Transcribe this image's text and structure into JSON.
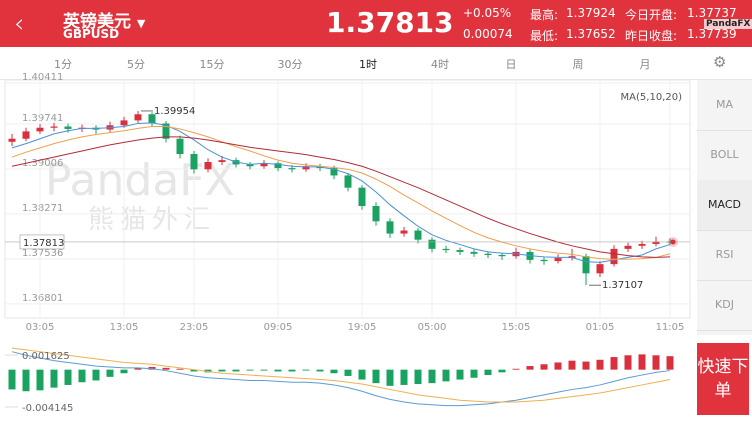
{
  "header": {
    "name": "英镑美元",
    "code": "GBPUSD",
    "change_pct": "+0.05%",
    "change": 0.00074,
    "high_label": "最高:",
    "high": 1.37924,
    "low_label": "最低:",
    "low": 1.37652,
    "open_label": "今日开盘:",
    "open": 1.37737,
    "prev_label": "昨日收盘:",
    "prev": 1.37739
  },
  "tabs": {
    "items": [
      "1分",
      "5分",
      "15分",
      "30分",
      "1时",
      "4时",
      "日",
      "周",
      "月"
    ],
    "selected": 4
  },
  "indicators": {
    "items": [
      "MA",
      "BOLL",
      "MACD",
      "RSI",
      "KDJ"
    ],
    "selected": 2
  },
  "button": "快速下单",
  "watermark": {
    "brand": "PandaFX",
    "chinese": "熊猫外汇"
  },
  "chart_data": [
    {
      "type": "candlestick",
      "indicator_label": "MA(5,10,20)",
      "last_price": 1.37813,
      "up_color": "#d9303d",
      "down_color": "#1aa260",
      "grid": true,
      "ylim": [
        1.3657,
        1.4046
      ],
      "yticks": [
        1.40411,
        1.39741,
        1.39006,
        1.38271,
        1.37536,
        1.36801
      ],
      "categories": [
        null,
        null,
        "03:05",
        null,
        null,
        null,
        null,
        null,
        "13:05",
        null,
        null,
        null,
        null,
        "23:05",
        null,
        null,
        null,
        null,
        null,
        "09:05",
        null,
        null,
        null,
        null,
        null,
        "19:05",
        null,
        null,
        null,
        null,
        "05:00",
        null,
        null,
        null,
        null,
        null,
        "15:05",
        null,
        null,
        null,
        null,
        null,
        "01:05",
        null,
        null,
        null,
        null,
        "11:05"
      ],
      "ohlc": [
        [
          1.3945,
          1.3958,
          1.3938,
          1.395
        ],
        [
          1.395,
          1.3968,
          1.3946,
          1.3962
        ],
        [
          1.3962,
          1.3974,
          1.3958,
          1.3968
        ],
        [
          1.3968,
          1.3976,
          1.3962,
          1.397
        ],
        [
          1.397,
          1.3975,
          1.396,
          1.3966
        ],
        [
          1.3966,
          1.3973,
          1.3961,
          1.3968
        ],
        [
          1.3968,
          1.3972,
          1.3958,
          1.3965
        ],
        [
          1.3965,
          1.3978,
          1.3961,
          1.3972
        ],
        [
          1.3972,
          1.3986,
          1.3968,
          1.398
        ],
        [
          1.398,
          1.39954,
          1.3976,
          1.399
        ],
        [
          1.399,
          1.3993,
          1.397,
          1.3975
        ],
        [
          1.3975,
          1.3979,
          1.3944,
          1.395
        ],
        [
          1.395,
          1.3955,
          1.3918,
          1.3925
        ],
        [
          1.3925,
          1.393,
          1.3893,
          1.39
        ],
        [
          1.39,
          1.3918,
          1.3895,
          1.3912
        ],
        [
          1.3912,
          1.3922,
          1.3907,
          1.3915
        ],
        [
          1.3915,
          1.3919,
          1.3903,
          1.3908
        ],
        [
          1.3908,
          1.3912,
          1.39,
          1.3905
        ],
        [
          1.3905,
          1.3915,
          1.3901,
          1.391
        ],
        [
          1.391,
          1.3913,
          1.3897,
          1.3902
        ],
        [
          1.3902,
          1.3907,
          1.3895,
          1.39
        ],
        [
          1.39,
          1.391,
          1.3896,
          1.3905
        ],
        [
          1.3905,
          1.3909,
          1.3897,
          1.3902
        ],
        [
          1.3902,
          1.3906,
          1.3884,
          1.389
        ],
        [
          1.389,
          1.3894,
          1.3864,
          1.387
        ],
        [
          1.387,
          1.3874,
          1.3834,
          1.384
        ],
        [
          1.384,
          1.3846,
          1.3808,
          1.3815
        ],
        [
          1.3815,
          1.382,
          1.3788,
          1.3795
        ],
        [
          1.3795,
          1.3806,
          1.379,
          1.38
        ],
        [
          1.38,
          1.3804,
          1.3779,
          1.3785
        ],
        [
          1.3785,
          1.3789,
          1.3764,
          1.377
        ],
        [
          1.377,
          1.3775,
          1.3763,
          1.3768
        ],
        [
          1.3768,
          1.3772,
          1.376,
          1.3765
        ],
        [
          1.3765,
          1.3769,
          1.3757,
          1.3762
        ],
        [
          1.3762,
          1.3766,
          1.3755,
          1.376
        ],
        [
          1.376,
          1.3764,
          1.3752,
          1.3758
        ],
        [
          1.3758,
          1.3772,
          1.3754,
          1.3765
        ],
        [
          1.3765,
          1.3769,
          1.3746,
          1.3752
        ],
        [
          1.3752,
          1.3756,
          1.3744,
          1.375
        ],
        [
          1.375,
          1.3761,
          1.3746,
          1.3755
        ],
        [
          1.3755,
          1.377,
          1.3751,
          1.3758
        ],
        [
          1.3758,
          1.3762,
          1.37107,
          1.373
        ],
        [
          1.373,
          1.375,
          1.3724,
          1.3745
        ],
        [
          1.3745,
          1.3776,
          1.3741,
          1.377
        ],
        [
          1.377,
          1.378,
          1.3765,
          1.3775
        ],
        [
          1.3775,
          1.3783,
          1.377,
          1.3778
        ],
        [
          1.3778,
          1.379,
          1.3774,
          1.3782
        ],
        [
          1.3782,
          1.3787,
          1.3777,
          1.37813
        ]
      ],
      "series": [
        {
          "name": "MA5",
          "color": "#4a90d9",
          "values": [
            1.3935,
            1.3942,
            1.395,
            1.3958,
            1.3963,
            1.3967,
            1.3967,
            1.3968,
            1.397,
            1.3975,
            1.3976,
            1.3972,
            1.3962,
            1.3948,
            1.3932,
            1.392,
            1.3912,
            1.3908,
            1.391,
            1.3908,
            1.3905,
            1.3904,
            1.3904,
            1.39,
            1.3893,
            1.3881,
            1.3863,
            1.3842,
            1.3824,
            1.3807,
            1.3793,
            1.3784,
            1.3777,
            1.377,
            1.3765,
            1.3763,
            1.3762,
            1.3759,
            1.3757,
            1.3756,
            1.3756,
            1.3749,
            1.3748,
            1.3752,
            1.3756,
            1.376,
            1.377,
            1.3777
          ]
        },
        {
          "name": "MA10",
          "color": "#f0a04b",
          "values": [
            1.392,
            1.3928,
            1.3935,
            1.3942,
            1.3948,
            1.3953,
            1.3957,
            1.396,
            1.3963,
            1.3967,
            1.397,
            1.397,
            1.3966,
            1.396,
            1.3953,
            1.3945,
            1.3937,
            1.393,
            1.3922,
            1.3915,
            1.391,
            1.3907,
            1.3905,
            1.3903,
            1.39,
            1.3894,
            1.3884,
            1.3872,
            1.3858,
            1.3845,
            1.3832,
            1.382,
            1.3808,
            1.3797,
            1.3788,
            1.3781,
            1.3775,
            1.377,
            1.3766,
            1.3763,
            1.3761,
            1.3757,
            1.3754,
            1.3753,
            1.3753,
            1.3754,
            1.3756,
            1.3762
          ]
        },
        {
          "name": "MA20",
          "color": "#b22a3a",
          "values": [
            1.3905,
            1.391,
            1.3915,
            1.392,
            1.3925,
            1.393,
            1.3935,
            1.394,
            1.3944,
            1.3948,
            1.3951,
            1.3953,
            1.3953,
            1.3951,
            1.3948,
            1.3944,
            1.394,
            1.3936,
            1.3933,
            1.393,
            1.3927,
            1.3924,
            1.392,
            1.3916,
            1.3911,
            1.3905,
            1.3897,
            1.3888,
            1.3879,
            1.387,
            1.386,
            1.385,
            1.384,
            1.383,
            1.382,
            1.3811,
            1.3803,
            1.3795,
            1.3788,
            1.3781,
            1.3775,
            1.377,
            1.3765,
            1.3762,
            1.3759,
            1.3757,
            1.3756,
            1.3757
          ]
        }
      ]
    },
    {
      "type": "macd",
      "ylim": [
        -0.0056,
        0.0033
      ],
      "yticks": [
        0.001625,
        -0.004145
      ],
      "up_color": "#d9303d",
      "down_color": "#1aa260",
      "histogram": [
        -0.0022,
        -0.0024,
        -0.0023,
        -0.002,
        -0.0017,
        -0.0014,
        -0.0012,
        -0.0008,
        -0.0004,
        0.0002,
        0.0003,
        0.0002,
        0.0001,
        -0.0002,
        -0.0003,
        -0.0002,
        -0.0002,
        -0.0001,
        -0.0001,
        -0.0002,
        -0.0002,
        -0.0001,
        -0.0002,
        -0.0004,
        -0.0007,
        -0.0011,
        -0.0015,
        -0.0018,
        -0.0017,
        -0.0016,
        -0.0015,
        -0.0013,
        -0.0011,
        -0.0009,
        -0.0006,
        -0.0003,
        0.0001,
        0.0004,
        0.0006,
        0.0008,
        0.001,
        0.0009,
        0.0011,
        0.0014,
        0.0016,
        0.0017,
        0.0016,
        0.0015
      ],
      "series": [
        {
          "name": "DIF",
          "color": "#5b9bd5",
          "values": [
            0.002,
            0.0016,
            0.0013,
            0.001,
            0.0008,
            0.0006,
            0.0004,
            0.0003,
            0.0002,
            0.0002,
            0.0001,
            -0.0001,
            -0.0004,
            -0.0007,
            -0.0009,
            -0.001,
            -0.0011,
            -0.0012,
            -0.0012,
            -0.0013,
            -0.0014,
            -0.0014,
            -0.0015,
            -0.0017,
            -0.002,
            -0.0024,
            -0.0029,
            -0.0033,
            -0.0036,
            -0.0038,
            -0.0039,
            -0.004,
            -0.004,
            -0.0039,
            -0.0038,
            -0.0036,
            -0.0034,
            -0.0031,
            -0.0028,
            -0.0025,
            -0.0022,
            -0.002,
            -0.0017,
            -0.0013,
            -0.0009,
            -0.0006,
            -0.0003,
            -0.0001
          ]
        },
        {
          "name": "DEA",
          "color": "#f0b050",
          "values": [
            0.0024,
            0.0022,
            0.002,
            0.0018,
            0.0016,
            0.0014,
            0.0012,
            0.001,
            0.0008,
            0.0007,
            0.0006,
            0.0004,
            0.0002,
            0.0,
            -0.0002,
            -0.0004,
            -0.0005,
            -0.0006,
            -0.0007,
            -0.0008,
            -0.0009,
            -0.001,
            -0.0011,
            -0.0012,
            -0.0014,
            -0.0016,
            -0.0019,
            -0.0022,
            -0.0025,
            -0.0028,
            -0.003,
            -0.0032,
            -0.0034,
            -0.0035,
            -0.0036,
            -0.0036,
            -0.0036,
            -0.0035,
            -0.0034,
            -0.0032,
            -0.003,
            -0.0028,
            -0.0026,
            -0.0023,
            -0.002,
            -0.0017,
            -0.0014,
            -0.0011
          ]
        }
      ]
    }
  ]
}
